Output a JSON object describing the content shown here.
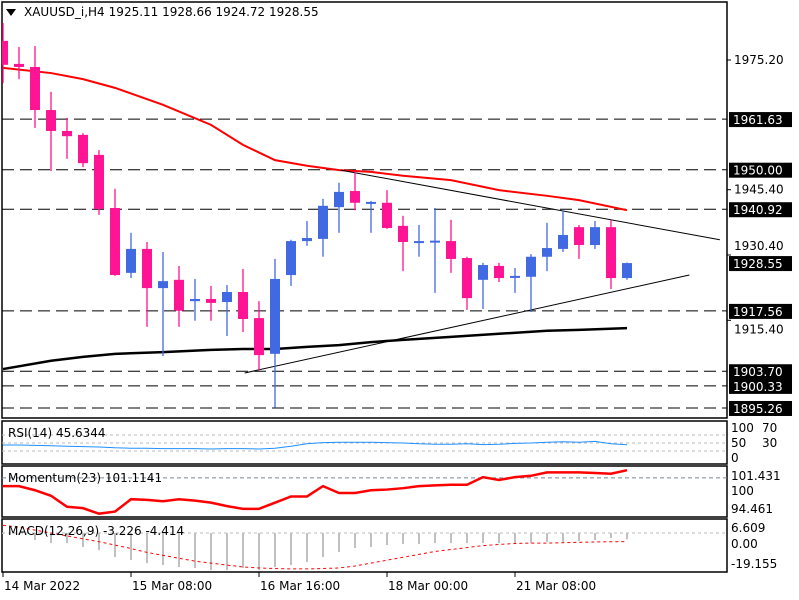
{
  "header": {
    "symbol": "XAUUSD_i,H4",
    "ohlc": "1925.11 1928.66 1924.72 1928.55"
  },
  "colors": {
    "bull": "#4169E1",
    "bear": "#FF1493",
    "ma_fast": "#FF0000",
    "ma_slow": "#000000",
    "rsi": "#1E90FF",
    "momentum": "#FF0000",
    "macd_hist": "#C0C0C0",
    "macd_signal": "#FF0000"
  },
  "chart_data": [
    {
      "type": "candlestick",
      "title": "XAUUSD_i,H4",
      "ylim": [
        1895.26,
        1983.7
      ],
      "price_ticks": [
        "1975.20",
        "1945.40",
        "1930.40",
        "1915.40"
      ],
      "level_lines": [
        "1961.63",
        "1950.00",
        "1940.92",
        "1917.56",
        "1903.70",
        "1900.33",
        "1895.26"
      ],
      "current_price": "1928.55",
      "x_labels": [
        {
          "index": 0,
          "label": "14 Mar 2022"
        },
        {
          "index": 8,
          "label": "15 Mar 08:00"
        },
        {
          "index": 16,
          "label": "16 Mar 16:00"
        },
        {
          "index": 24,
          "label": "18 Mar 00:00"
        },
        {
          "index": 32,
          "label": "21 Mar 08:00"
        }
      ],
      "candles": [
        [
          1979.6,
          1983.7,
          1969.9,
          1974.1
        ],
        [
          1974.3,
          1978.2,
          1970.8,
          1973.6
        ],
        [
          1973.6,
          1978.4,
          1959.6,
          1963.7
        ],
        [
          1963.7,
          1967.9,
          1949.7,
          1958.9
        ],
        [
          1958.9,
          1961.9,
          1952.5,
          1957.7
        ],
        [
          1958.0,
          1958.4,
          1950.6,
          1951.5
        ],
        [
          1953.4,
          1954.5,
          1939.6,
          1941.0
        ],
        [
          1941.2,
          1945.6,
          1925.6,
          1925.8
        ],
        [
          1926.3,
          1935.5,
          1925.1,
          1931.8
        ],
        [
          1931.8,
          1933.4,
          1913.9,
          1922.8
        ],
        [
          1922.8,
          1931.1,
          1907.2,
          1924.4
        ],
        [
          1924.7,
          1927.9,
          1913.9,
          1917.6
        ],
        [
          1919.8,
          1924.9,
          1915.3,
          1920.3
        ],
        [
          1920.3,
          1923.3,
          1915.3,
          1919.4
        ],
        [
          1919.6,
          1923.5,
          1911.8,
          1921.9
        ],
        [
          1921.9,
          1927.2,
          1912.7,
          1915.7
        ],
        [
          1915.9,
          1919.8,
          1904.0,
          1907.4
        ],
        [
          1907.7,
          1929.5,
          1895.3,
          1924.9
        ],
        [
          1925.8,
          1933.9,
          1923.3,
          1933.6
        ],
        [
          1933.6,
          1938.2,
          1932.5,
          1934.3
        ],
        [
          1934.1,
          1943.3,
          1930.0,
          1941.7
        ],
        [
          1941.4,
          1947.0,
          1935.5,
          1944.9
        ],
        [
          1945.1,
          1949.7,
          1940.7,
          1942.4
        ],
        [
          1942.4,
          1942.8,
          1935.5,
          1942.6
        ],
        [
          1942.4,
          1945.3,
          1936.4,
          1936.6
        ],
        [
          1937.1,
          1939.4,
          1926.7,
          1933.4
        ],
        [
          1933.4,
          1937.3,
          1930.0,
          1933.6
        ],
        [
          1933.5,
          1941.2,
          1921.7,
          1933.7
        ],
        [
          1933.6,
          1938.5,
          1926.3,
          1929.5
        ],
        [
          1929.7,
          1930.0,
          1917.8,
          1920.5
        ],
        [
          1924.7,
          1928.6,
          1918.0,
          1928.1
        ],
        [
          1927.9,
          1928.6,
          1924.2,
          1925.1
        ],
        [
          1925.4,
          1927.4,
          1921.7,
          1925.6
        ],
        [
          1925.4,
          1930.6,
          1917.3,
          1930.0
        ],
        [
          1930.0,
          1937.8,
          1926.7,
          1932.0
        ],
        [
          1931.8,
          1940.7,
          1931.1,
          1935.0
        ],
        [
          1936.8,
          1937.3,
          1929.5,
          1932.7
        ],
        [
          1932.7,
          1938.2,
          1931.8,
          1936.8
        ],
        [
          1936.8,
          1938.5,
          1922.6,
          1925.1
        ],
        [
          1925.11,
          1928.66,
          1924.72,
          1928.55
        ]
      ],
      "ma_fast": {
        "index": [
          0,
          3,
          5,
          7,
          10,
          13,
          15,
          17,
          19,
          21,
          23,
          25,
          28,
          31,
          34,
          36,
          39
        ],
        "values": [
          1973.4,
          1972.2,
          1970.8,
          1968.8,
          1964.9,
          1960.3,
          1955.7,
          1952.2,
          1950.9,
          1949.9,
          1949.5,
          1948.6,
          1947.6,
          1945.3,
          1944.0,
          1943.0,
          1940.7
        ]
      },
      "ma_slow": {
        "index": [
          0,
          3,
          5,
          7,
          10,
          13,
          15,
          17,
          19,
          21,
          23,
          25,
          28,
          31,
          34,
          36,
          39
        ],
        "values": [
          1904.2,
          1906.1,
          1907.0,
          1907.7,
          1908.1,
          1908.6,
          1908.8,
          1908.8,
          1909.3,
          1909.7,
          1910.4,
          1910.9,
          1911.6,
          1912.3,
          1913.0,
          1913.2,
          1913.6
        ]
      },
      "trendlines": [
        {
          "name": "upper",
          "from": [
            21.1,
            1949.9
          ],
          "to": [
            44.8,
            1933.9
          ]
        },
        {
          "name": "lower",
          "from": [
            15.1,
            1903.3
          ],
          "to": [
            42.9,
            1925.8
          ]
        }
      ]
    },
    {
      "type": "line",
      "title": "RSI(14) 45.6344",
      "ylim": [
        0,
        100
      ],
      "scale_labels": [
        "100",
        "70",
        "50",
        "30",
        "0"
      ],
      "levels": [
        70,
        50,
        30
      ],
      "values": [
        45,
        45,
        44,
        43,
        42,
        41,
        40,
        38,
        37,
        37,
        36,
        36,
        36,
        35,
        36,
        36,
        35,
        37,
        42,
        48,
        51,
        52,
        52,
        52,
        51,
        50,
        48,
        47,
        47,
        48,
        46,
        47,
        49,
        50,
        52,
        53,
        52,
        54,
        48,
        45.6344
      ]
    },
    {
      "type": "line",
      "title": "Momentum(23) 101.1141",
      "ylim": [
        94.461,
        101.431
      ],
      "scale_labels": [
        "101.431",
        "100",
        "94.461"
      ],
      "level": 100,
      "values": [
        98.8,
        98.8,
        98.2,
        97.4,
        95.8,
        95.6,
        94.8,
        95.1,
        96.9,
        96.8,
        96.6,
        96.9,
        96.7,
        96.4,
        95.9,
        95.5,
        95.5,
        96.4,
        97.3,
        97.3,
        98.8,
        97.8,
        97.8,
        98.2,
        98.3,
        98.5,
        98.8,
        98.9,
        99.0,
        99.0,
        100.1,
        99.7,
        100.1,
        100.3,
        100.8,
        100.8,
        100.8,
        100.7,
        100.6,
        101.1141
      ]
    },
    {
      "type": "bar",
      "title": "MACD(12,26,9) -3.226 -4.414",
      "ylim": [
        -19.155,
        6.609
      ],
      "scale_labels": [
        "6.609",
        "0.00",
        "-19.155"
      ],
      "histogram": [
        -0.5,
        -1.0,
        -3.6,
        -5.2,
        -5.2,
        -7.2,
        -8.8,
        -12.4,
        -13.9,
        -15.5,
        -16.5,
        -17.5,
        -18.0,
        -19.1,
        -19.1,
        -18.0,
        -19.1,
        -17.5,
        -16.5,
        -14.9,
        -12.4,
        -9.8,
        -7.7,
        -7.2,
        -6.2,
        -5.7,
        -5.7,
        -5.2,
        -5.2,
        -5.2,
        -5.2,
        -5.2,
        -5.2,
        -5.2,
        -4.6,
        -4.6,
        -4.1,
        -3.6,
        -2.6,
        -3.226
      ],
      "signal": [
        4.0,
        3.0,
        1.5,
        0.0,
        -1.5,
        -3.0,
        -4.5,
        -6.2,
        -8.0,
        -10.0,
        -11.5,
        -13.0,
        -14.5,
        -15.5,
        -16.5,
        -17.5,
        -18.0,
        -18.3,
        -18.5,
        -18.5,
        -18.3,
        -18.0,
        -17.0,
        -15.5,
        -14.0,
        -12.5,
        -11.0,
        -9.5,
        -8.5,
        -7.5,
        -6.5,
        -5.9,
        -5.4,
        -5.2,
        -5.2,
        -5.0,
        -4.8,
        -4.6,
        -4.5,
        -4.414
      ]
    }
  ]
}
